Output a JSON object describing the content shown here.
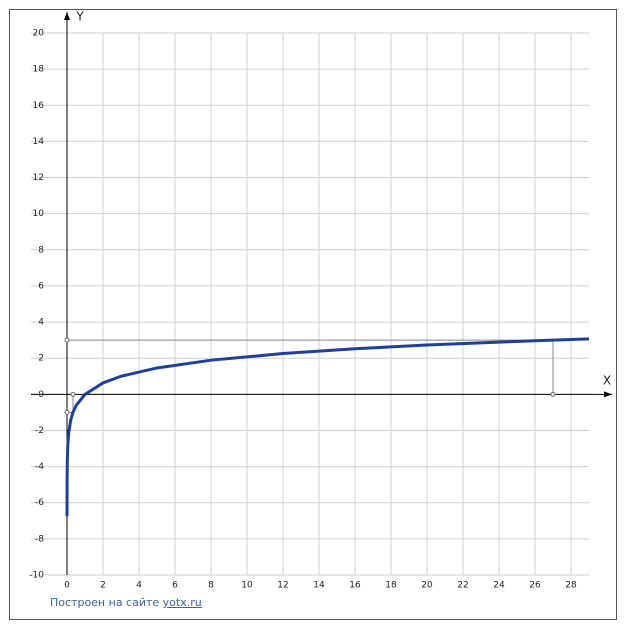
{
  "chart_data": {
    "type": "line",
    "x_label": "X",
    "y_label": "Y",
    "x": [
      0.0006,
      0.005,
      0.02,
      0.05,
      0.1,
      0.2,
      0.33,
      0.5,
      1,
      2,
      3,
      5,
      8,
      12,
      16,
      20,
      24,
      27,
      29
    ],
    "values": [
      -6.75,
      -4.82,
      -3.56,
      -2.73,
      -2.1,
      -1.46,
      -1,
      -0.63,
      0,
      0.63,
      1,
      1.46,
      1.89,
      2.26,
      2.52,
      2.73,
      2.89,
      3,
      3.07
    ],
    "color": "#1f3f9a",
    "guides": [
      {
        "x": 27,
        "y": 3
      },
      {
        "x": 0.33,
        "y": -1
      }
    ],
    "xlim": [
      -2,
      29
    ],
    "ylim": [
      -10,
      20
    ],
    "xticks": [
      0,
      2,
      4,
      6,
      8,
      10,
      12,
      14,
      16,
      18,
      20,
      22,
      24,
      26,
      28
    ],
    "yticks": [
      -10,
      -8,
      -6,
      -4,
      -2,
      0,
      2,
      4,
      6,
      8,
      10,
      12,
      14,
      16,
      18,
      20
    ],
    "grid": true
  },
  "footer": {
    "text": "Построен на сайте",
    "link": "yotx.ru"
  }
}
